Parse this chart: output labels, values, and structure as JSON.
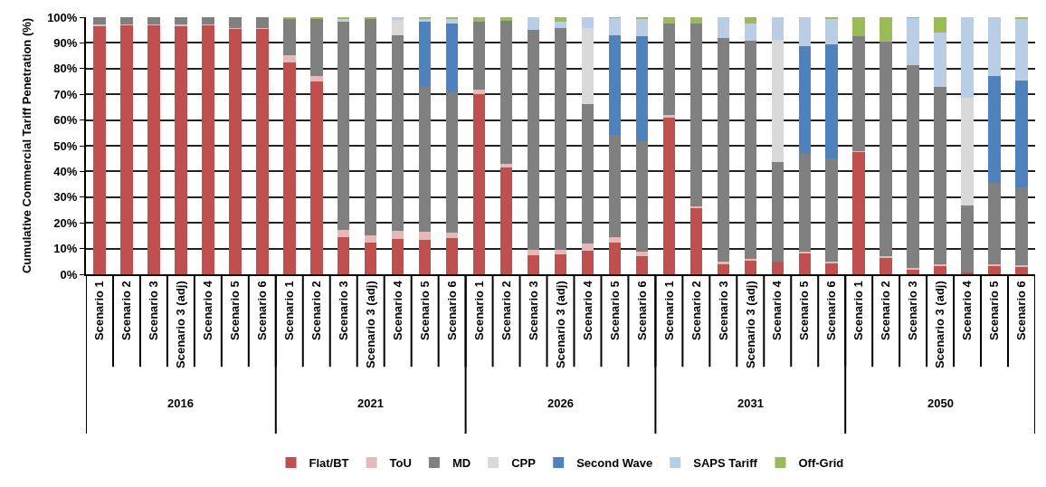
{
  "chart_data": {
    "type": "bar",
    "stacked": true,
    "ylabel": "Cumulative Commercial Tariff Penetration (%)",
    "categories": [
      "Scenario 1",
      "Scenario 2",
      "Scenario 3",
      "Scenario 3 (adj)",
      "Scenario 4",
      "Scenario 5",
      "Scenario 6",
      "Scenario 1",
      "Scenario 2",
      "Scenario 3",
      "Scenario 3 (adj)",
      "Scenario 4",
      "Scenario 5",
      "Scenario 6",
      "Scenario 1",
      "Scenario 2",
      "Scenario 3",
      "Scenario 3 (adj)",
      "Scenario 4",
      "Scenario 5",
      "Scenario 6",
      "Scenario 1",
      "Scenario 2",
      "Scenario 3",
      "Scenario 3 (adj)",
      "Scenario 4",
      "Scenario 5",
      "Scenario 6",
      "Scenario 1",
      "Scenario 2",
      "Scenario 3",
      "Scenario 3 (adj)",
      "Scenario 4",
      "Scenario 5",
      "Scenario 6"
    ],
    "annotations": [
      "2016",
      "2021",
      "2026",
      "2031",
      "2050"
    ],
    "series": [
      {
        "name": "Flat/BT",
        "color": "#c0504d",
        "values": [
          96.5,
          97,
          97,
          96.5,
          97,
          95.5,
          95.5,
          82.4,
          75,
          14.4,
          12.5,
          13.6,
          13.3,
          14.2,
          69.9,
          41.5,
          7.4,
          7.6,
          9.3,
          12.2,
          7.2,
          61.1,
          25.8,
          4.2,
          5.3,
          4.8,
          8.2,
          4.3,
          47.7,
          6.6,
          1.9,
          3.4,
          0.8,
          3.4,
          3.1
        ]
      },
      {
        "name": "ToU",
        "color": "#e6b9b8",
        "values": [
          0.7,
          0.2,
          0.2,
          0.7,
          0.3,
          0.3,
          0.3,
          2.8,
          2,
          2.9,
          2.8,
          3.4,
          3.2,
          2.1,
          2,
          1.5,
          2,
          1.9,
          2.6,
          2.2,
          1.6,
          0.7,
          0.6,
          0.7,
          0.6,
          0,
          0.7,
          0.5,
          0.3,
          0.4,
          0.4,
          0.5,
          0,
          0.4,
          0.3
        ]
      },
      {
        "name": "MD",
        "color": "#808080",
        "values": [
          2.8,
          2.8,
          2.8,
          2.8,
          2.7,
          4.2,
          4.2,
          14,
          22.2,
          81,
          83.9,
          75.8,
          56.5,
          54.4,
          26.4,
          55.6,
          85.5,
          86.4,
          54.4,
          39.9,
          42.8,
          35.9,
          71.3,
          86.9,
          85,
          39,
          37.9,
          40.1,
          44.6,
          83.6,
          79.2,
          69.1,
          26.1,
          31.7,
          30.5
        ]
      },
      {
        "name": "CPP",
        "color": "#d9d9d9",
        "values": [
          0,
          0,
          0,
          0,
          0,
          0,
          0,
          0,
          0,
          0,
          0,
          6.1,
          0,
          0,
          0,
          0,
          0,
          0,
          29.4,
          0,
          0,
          0,
          0,
          0,
          0,
          47.3,
          0,
          0,
          0,
          0,
          0,
          0,
          41.9,
          0,
          0
        ]
      },
      {
        "name": "Second Wave",
        "color": "#4f81bd",
        "values": [
          0,
          0,
          0,
          0,
          0,
          0,
          0,
          0,
          0,
          0,
          0,
          0,
          25.1,
          27,
          0,
          0,
          0,
          0,
          0,
          38.7,
          41,
          0,
          0,
          0,
          0,
          0,
          42.1,
          44.5,
          0,
          0,
          0,
          0,
          0,
          41.5,
          41.3
        ]
      },
      {
        "name": "SAPS Tariff",
        "color": "#b9cde5",
        "values": [
          0,
          0,
          0,
          0,
          0,
          0,
          0,
          0,
          0,
          0.9,
          0,
          1.1,
          1.3,
          1.5,
          0,
          0,
          5.1,
          2.4,
          4.3,
          6.7,
          6.6,
          0,
          0,
          8.2,
          6.6,
          8.9,
          11.1,
          10,
          0,
          0,
          18.3,
          20.9,
          31.2,
          23,
          24.2
        ]
      },
      {
        "name": "Off-Grid",
        "color": "#9bbb59",
        "values": [
          0,
          0,
          0,
          0,
          0,
          0,
          0,
          0.8,
          0.8,
          0.8,
          0.8,
          0,
          0.6,
          0.8,
          1.7,
          1.4,
          0,
          1.7,
          0,
          0.3,
          0.8,
          2.3,
          2.3,
          0,
          2.5,
          0,
          0,
          0.6,
          7.4,
          9.4,
          0.2,
          6.1,
          0,
          0,
          0.6
        ]
      }
    ],
    "ylim": [
      0,
      100
    ],
    "yticks": [
      {
        "value": 0,
        "label": "0%"
      },
      {
        "value": 10,
        "label": "10%"
      },
      {
        "value": 20,
        "label": "20%"
      },
      {
        "value": 30,
        "label": "30%"
      },
      {
        "value": 40,
        "label": "40%"
      },
      {
        "value": 50,
        "label": "50%"
      },
      {
        "value": 60,
        "label": "60%"
      },
      {
        "value": 70,
        "label": "70%"
      },
      {
        "value": 80,
        "label": "80%"
      },
      {
        "value": 90,
        "label": "90%"
      },
      {
        "value": 100,
        "label": "100%"
      }
    ],
    "grid": "y",
    "legend": "bottom"
  }
}
